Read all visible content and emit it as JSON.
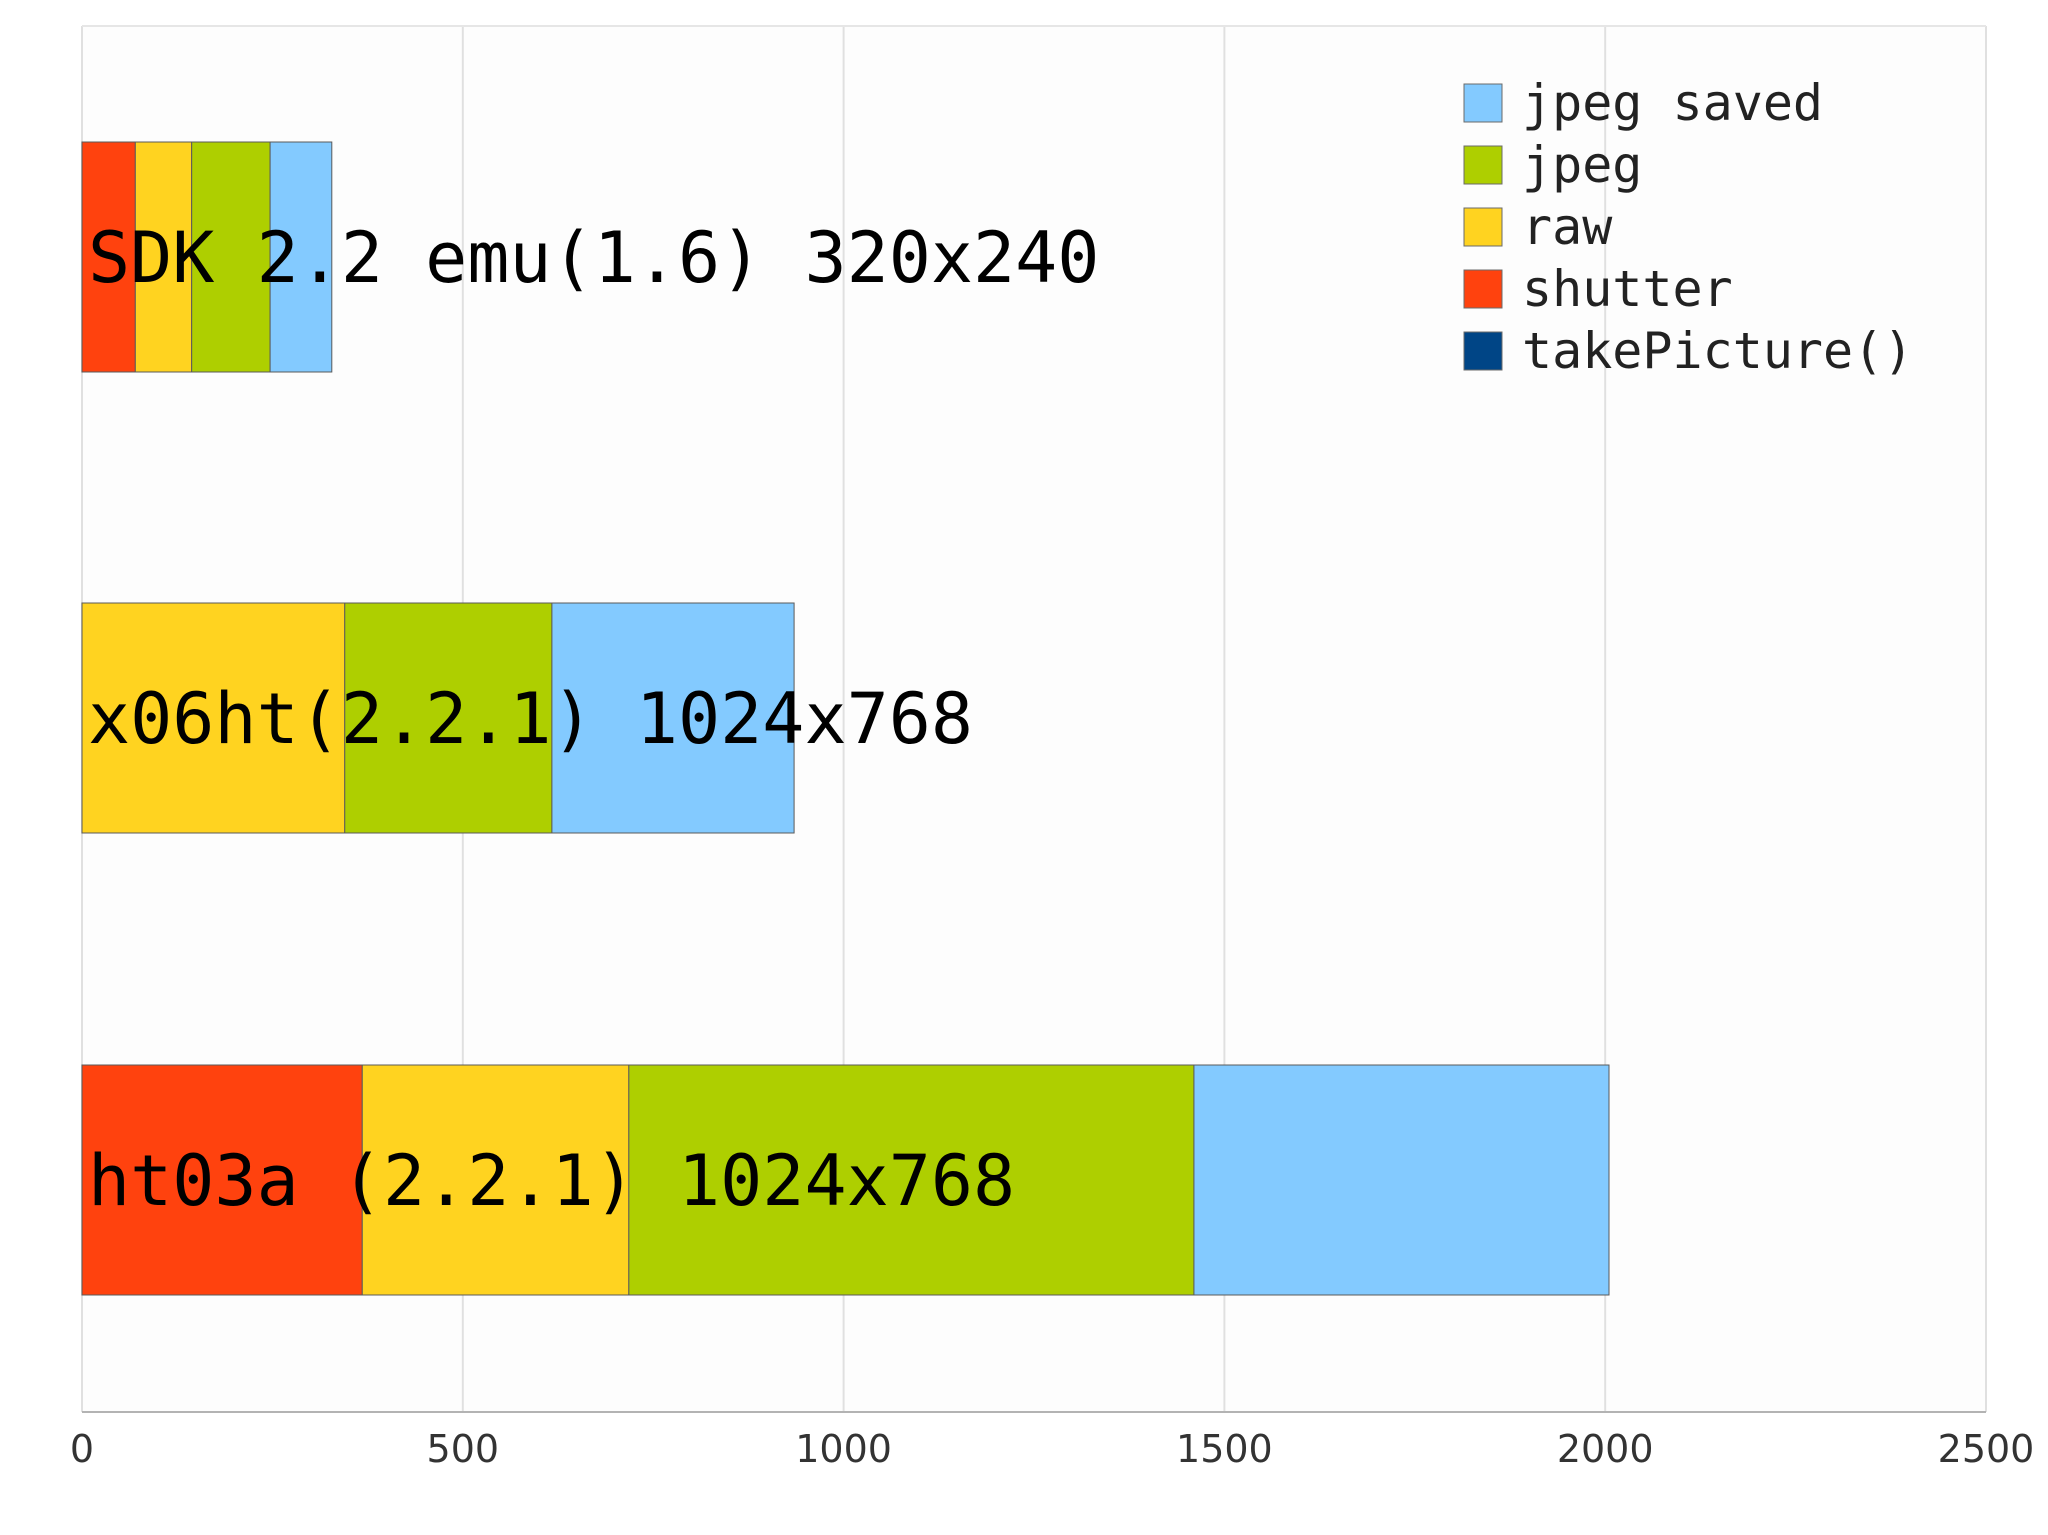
{
  "chart_data": {
    "type": "bar",
    "orientation": "horizontal",
    "stacked": true,
    "title": "",
    "xlabel": "",
    "ylabel": "",
    "xlim": [
      0,
      2500
    ],
    "xticks": [
      0,
      500,
      1000,
      1500,
      2000,
      2500
    ],
    "grid": true,
    "legend_position": "top-right",
    "categories": [
      "SDK 2.2 emu(1.6) 320x240",
      "x06ht(2.2.1) 1024x768",
      "ht03a (2.2.1) 1024x768"
    ],
    "series": [
      {
        "name": "takePicture()",
        "color": "#004586",
        "values": [
          0,
          0,
          0
        ]
      },
      {
        "name": "shutter",
        "color": "#ff420e",
        "values": [
          70,
          0,
          368
        ]
      },
      {
        "name": "raw",
        "color": "#ffd320",
        "values": [
          74,
          345,
          350
        ]
      },
      {
        "name": "jpeg",
        "color": "#aecf00",
        "values": [
          103,
          272,
          742
        ]
      },
      {
        "name": "jpeg saved",
        "color": "#83caff",
        "values": [
          81,
          318,
          545
        ]
      }
    ],
    "legend_order": [
      "jpeg saved",
      "jpeg",
      "raw",
      "shutter",
      "takePicture()"
    ]
  }
}
